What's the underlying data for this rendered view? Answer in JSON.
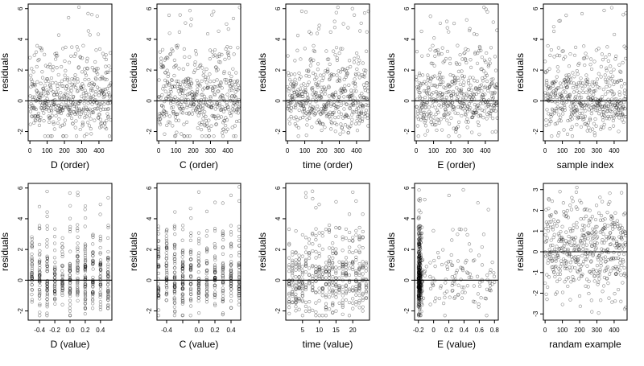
{
  "chart_data": [
    {
      "type": "scatter",
      "xlabel": "D (order)",
      "ylabel": "residuals",
      "xlim": [
        -10,
        475
      ],
      "ylim": [
        -2.6,
        6.3
      ],
      "xticks": [
        0,
        100,
        200,
        300,
        400
      ],
      "yticks": [
        -2,
        0,
        2,
        4,
        6
      ],
      "reference_line": 0,
      "x_kind": "order",
      "seed": 11
    },
    {
      "type": "scatter",
      "xlabel": "C (order)",
      "ylabel": "residuals",
      "xlim": [
        -10,
        475
      ],
      "ylim": [
        -2.6,
        6.3
      ],
      "xticks": [
        0,
        100,
        200,
        300,
        400
      ],
      "yticks": [
        -2,
        0,
        2,
        4,
        6
      ],
      "reference_line": 0,
      "x_kind": "order",
      "seed": 23
    },
    {
      "type": "scatter",
      "xlabel": "time (order)",
      "ylabel": "residuals",
      "xlim": [
        -10,
        475
      ],
      "ylim": [
        -2.6,
        6.3
      ],
      "xticks": [
        0,
        100,
        200,
        300,
        400
      ],
      "yticks": [
        -2,
        0,
        2,
        4,
        6
      ],
      "reference_line": 0,
      "x_kind": "order",
      "seed": 37
    },
    {
      "type": "scatter",
      "xlabel": "E (order)",
      "ylabel": "residuals",
      "xlim": [
        -10,
        475
      ],
      "ylim": [
        -2.6,
        6.3
      ],
      "xticks": [
        0,
        100,
        200,
        300,
        400
      ],
      "yticks": [
        -2,
        0,
        2,
        4,
        6
      ],
      "reference_line": 0,
      "x_kind": "order",
      "seed": 41
    },
    {
      "type": "scatter",
      "xlabel": "sample index",
      "ylabel": "residuals",
      "xlim": [
        -10,
        475
      ],
      "ylim": [
        -2.6,
        6.3
      ],
      "xticks": [
        0,
        100,
        200,
        300,
        400
      ],
      "yticks": [
        -2,
        0,
        2,
        4,
        6
      ],
      "reference_line": 0,
      "x_kind": "order",
      "seed": 53
    },
    {
      "type": "scatter",
      "xlabel": "D (value)",
      "ylabel": "residuals",
      "xlim": [
        -0.55,
        0.55
      ],
      "ylim": [
        -2.6,
        6.3
      ],
      "xticks": [
        -0.4,
        -0.2,
        0.0,
        0.2,
        0.4
      ],
      "xtick_labels": [
        "-0.4",
        "-0.2",
        "0.0",
        "0.2",
        "0.4"
      ],
      "yticks": [
        -2,
        0,
        2,
        4,
        6
      ],
      "reference_line": 0,
      "x_kind": "discrete",
      "x_values": [
        -0.5,
        -0.4,
        -0.3,
        -0.2,
        -0.1,
        0.0,
        0.1,
        0.2,
        0.3,
        0.4,
        0.5
      ],
      "seed": 61
    },
    {
      "type": "scatter",
      "xlabel": "C (value)",
      "ylabel": "residuals",
      "xlim": [
        -0.52,
        0.52
      ],
      "ylim": [
        -2.6,
        6.3
      ],
      "xticks": [
        -0.4,
        -0.2,
        0.0,
        0.2,
        0.4
      ],
      "xtick_labels": [
        "-0.4",
        "",
        "0.0",
        "0.2",
        "0.4"
      ],
      "yticks": [
        -2,
        0,
        2,
        4,
        6
      ],
      "reference_line": 0,
      "x_kind": "discrete",
      "x_values": [
        -0.5,
        -0.4,
        -0.3,
        -0.2,
        -0.1,
        0.0,
        0.1,
        0.2,
        0.3,
        0.4,
        0.5
      ],
      "seed": 71
    },
    {
      "type": "scatter",
      "xlabel": "time (value)",
      "ylabel": "residuals",
      "xlim": [
        0,
        25
      ],
      "ylim": [
        -2.6,
        6.3
      ],
      "xticks": [
        5,
        10,
        15,
        20
      ],
      "yticks": [
        -2,
        0,
        2,
        4,
        6
      ],
      "reference_line": 0,
      "x_kind": "discrete",
      "x_values": [
        1,
        2,
        3,
        4,
        5,
        6,
        7,
        8,
        9,
        10,
        11,
        12,
        13,
        14,
        15,
        16,
        17,
        18,
        19,
        20,
        21,
        22,
        23,
        24
      ],
      "seed": 83
    },
    {
      "type": "scatter",
      "xlabel": "E (value)",
      "ylabel": "residuals",
      "xlim": [
        -0.25,
        0.85
      ],
      "ylim": [
        -2.6,
        6.3
      ],
      "xticks": [
        -0.2,
        0.0,
        0.2,
        0.4,
        0.6,
        0.8
      ],
      "yticks": [
        -2,
        0,
        2,
        4,
        6
      ],
      "reference_line": 0,
      "x_kind": "skewed",
      "seed": 97
    },
    {
      "type": "scatter",
      "xlabel": "randam example",
      "ylabel": "residuals",
      "xlim": [
        -10,
        475
      ],
      "ylim": [
        -3.3,
        3.3
      ],
      "xticks": [
        0,
        100,
        200,
        300,
        400
      ],
      "yticks": [
        -3,
        -2,
        -1,
        0,
        1,
        2,
        3
      ],
      "reference_line": 0,
      "x_kind": "random",
      "seed": 101
    }
  ]
}
